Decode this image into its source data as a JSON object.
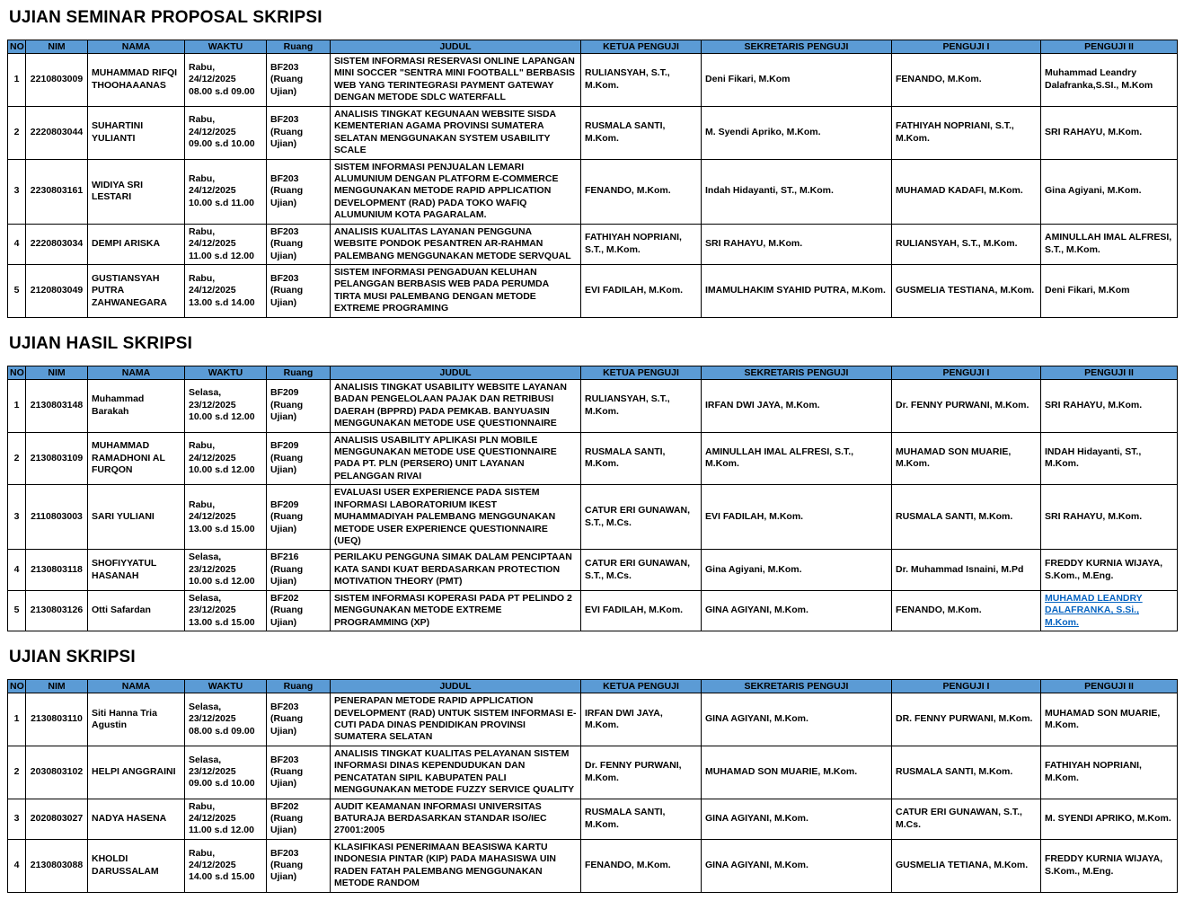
{
  "colors": {
    "header_bg": "#5B9BD5",
    "border": "#000000",
    "link": "#0563C1"
  },
  "columns": [
    "NO",
    "NIM",
    "NAMA",
    "WAKTU",
    "Ruang",
    "JUDUL",
    "KETUA PENGUJI",
    "SEKRETARIS PENGUJI",
    "PENGUJI I",
    "PENGUJI II"
  ],
  "sections": [
    {
      "title": "UJIAN SEMINAR PROPOSAL SKRIPSI",
      "rows": [
        {
          "no": "1",
          "nim": "2210803009",
          "nama": "MUHAMMAD RIFQI THOOHAAANAS",
          "waktu": "Rabu, 24/12/2025\n08.00 s.d 09.00",
          "ruang": "BF203\n(Ruang Ujian)",
          "judul": "SISTEM INFORMASI RESERVASI ONLINE LAPANGAN MINI SOCCER \"SENTRA MINI FOOTBALL\" BERBASIS WEB YANG TERINTEGRASI PAYMENT GATEWAY DENGAN METODE SDLC WATERFALL",
          "ketua": "RULIANSYAH, S.T., M.Kom.",
          "sekretaris": "Deni Fikari, M.Kom",
          "penguji1": "FENANDO, M.Kom.",
          "penguji2": "Muhammad Leandry Dalafranka,S.SI., M.Kom"
        },
        {
          "no": "2",
          "nim": "2220803044",
          "nama": "SUHARTINI YULIANTI",
          "waktu": "Rabu, 24/12/2025\n09.00 s.d 10.00",
          "ruang": "BF203\n(Ruang Ujian)",
          "judul": "ANALISIS TINGKAT KEGUNAAN WEBSITE SISDA KEMENTERIAN AGAMA PROVINSI SUMATERA SELATAN MENGGUNAKAN SYSTEM USABILITY SCALE",
          "ketua": "RUSMALA SANTI, M.Kom.",
          "sekretaris": "M. Syendi Apriko, M.Kom.",
          "penguji1": "FATHIYAH NOPRIANI, S.T., M.Kom.",
          "penguji2": "SRI RAHAYU, M.Kom."
        },
        {
          "no": "3",
          "nim": "2230803161",
          "nama": "WIDIYA SRI LESTARI",
          "waktu": "Rabu, 24/12/2025\n10.00 s.d 11.00",
          "ruang": "BF203\n(Ruang Ujian)",
          "judul": "SISTEM INFORMASI PENJUALAN LEMARI ALUMUNIUM DENGAN PLATFORM E-COMMERCE MENGGUNAKAN METODE RAPID APPLICATION DEVELOPMENT (RAD) PADA TOKO WAFIQ ALUMUNIUM KOTA PAGARALAM.",
          "ketua": "FENANDO, M.Kom.",
          "sekretaris": "Indah Hidayanti, ST., M.Kom.",
          "penguji1": "MUHAMAD KADAFI, M.Kom.",
          "penguji2": "Gina Agiyani, M.Kom."
        },
        {
          "no": "4",
          "nim": "2220803034",
          "nama": "DEMPI ARISKA",
          "waktu": "Rabu, 24/12/2025\n11.00 s.d 12.00",
          "ruang": "BF203\n(Ruang Ujian)",
          "judul": "ANALISIS KUALITAS LAYANAN PENGGUNA WEBSITE PONDOK PESANTREN AR-RAHMAN PALEMBANG MENGGUNAKAN METODE SERVQUAL",
          "ketua": "FATHIYAH NOPRIANI, S.T., M.Kom.",
          "sekretaris": "SRI RAHAYU, M.Kom.",
          "penguji1": "RULIANSYAH, S.T., M.Kom.",
          "penguji2": "AMINULLAH IMAL ALFRESI, S.T., M.Kom."
        },
        {
          "no": "5",
          "nim": "2120803049",
          "nama": "GUSTIANSYAH PUTRA ZAHWANEGARA",
          "waktu": "Rabu, 24/12/2025\n13.00 s.d 14.00",
          "ruang": "BF203\n(Ruang Ujian)",
          "judul": "SISTEM INFORMASI PENGADUAN KELUHAN PELANGGAN BERBASIS WEB PADA PERUMDA TIRTA MUSI PALEMBANG DENGAN METODE EXTREME PROGRAMING",
          "ketua": "EVI FADILAH, M.Kom.",
          "sekretaris": "IMAMULHAKIM SYAHID PUTRA, M.Kom.",
          "penguji1": "GUSMELIA TESTIANA, M.Kom.",
          "penguji2": "Deni Fikari, M.Kom"
        }
      ]
    },
    {
      "title": "UJIAN HASIL SKRIPSI",
      "rows": [
        {
          "no": "1",
          "nim": "2130803148",
          "nama": "Muhammad Barakah",
          "plain": true,
          "waktu": "Selasa, 23/12/2025\n10.00 s.d 12.00",
          "ruang": "BF209\n(Ruang Ujian)",
          "judul": "ANALISIS TINGKAT USABILITY WEBSITE LAYANAN BADAN PENGELOLAAN PAJAK DAN RETRIBUSI DAERAH (BPPRD) PADA PEMKAB. BANYUASIN MENGGUNAKAN METODE USE QUESTIONNAIRE",
          "ketua": "RULIANSYAH, S.T., M.Kom.",
          "sekretaris": "IRFAN DWI JAYA, M.Kom.",
          "penguji1": "Dr. FENNY PURWANI, M.Kom.",
          "penguji2": "SRI RAHAYU, M.Kom."
        },
        {
          "no": "2",
          "nim": "2130803109",
          "nama": "MUHAMMAD RAMADHONI AL FURQON",
          "waktu": "Rabu, 24/12/2025\n10.00 s.d 12.00",
          "ruang": "BF209\n(Ruang Ujian)",
          "judul": "ANALISIS USABILITY APLIKASI PLN MOBILE MENGGUNAKAN METODE USE QUESTIONNAIRE PADA PT. PLN (PERSERO) UNIT LAYANAN PELANGGAN RIVAI",
          "ketua": "RUSMALA SANTI, M.Kom.",
          "sekretaris": "AMINULLAH IMAL ALFRESI, S.T., M.Kom.",
          "penguji1": "MUHAMAD SON MUARIE, M.Kom.",
          "penguji2": "INDAH Hidayanti, ST., M.Kom."
        },
        {
          "no": "3",
          "nim": "2110803003",
          "nama": "SARI YULIANI",
          "waktu": "Rabu, 24/12/2025\n13.00 s.d 15.00",
          "ruang": "BF209\n(Ruang Ujian)",
          "judul": "EVALUASI USER EXPERIENCE PADA SISTEM INFORMASI LABORATORIUM IKEST MUHAMMADIYAH PALEMBANG MENGGUNAKAN METODE USER EXPERIENCE QUESTIONNAIRE (UEQ)",
          "ketua": "CATUR ERI GUNAWAN, S.T., M.Cs.",
          "sekretaris": "EVI FADILAH, M.Kom.",
          "penguji1": "RUSMALA SANTI, M.Kom.",
          "penguji2": "SRI RAHAYU, M.Kom."
        },
        {
          "no": "4",
          "nim": "2130803118",
          "nama": "SHOFIYYATUL HASANAH",
          "waktu": "Selasa, 23/12/2025\n10.00 s.d 12.00",
          "ruang": "BF216\n(Ruang Ujian)",
          "judul": "PERILAKU PENGGUNA SIMAK DALAM PENCIPTAAN KATA SANDI KUAT BERDASARKAN PROTECTION MOTIVATION THEORY (PMT)",
          "ketua": "CATUR ERI GUNAWAN, S.T., M.Cs.",
          "sekretaris": "Gina Agiyani, M.Kom.",
          "penguji1": "Dr. Muhammad Isnaini, M.Pd",
          "penguji2": "FREDDY KURNIA WIJAYA, S.Kom., M.Eng."
        },
        {
          "no": "5",
          "nim": "2130803126",
          "nama": "Otti Safardan",
          "plain": true,
          "waktu": "Selasa, 23/12/2025\n13.00 s.d 15.00",
          "ruang": "BF202\n(Ruang Ujian)",
          "judul": "SISTEM INFORMASI KOPERASI PADA PT PELINDO 2 MENGGUNAKAN METODE EXTREME PROGRAMMING (XP)",
          "ketua": "EVI FADILAH, M.Kom.",
          "sekretaris": "GINA AGIYANI, M.Kom.",
          "penguji1": "FENANDO, M.Kom.",
          "penguji2": "MUHAMAD LEANDRY DALAFRANKA, S.Si., M.Kom.",
          "penguji2_link": true
        }
      ]
    },
    {
      "title": "UJIAN SKRIPSI",
      "rows": [
        {
          "no": "1",
          "nim": "2130803110",
          "nama": "Siti Hanna Tria Agustin",
          "plain": true,
          "waktu": "Selasa, 23/12/2025\n08.00 s.d 09.00",
          "ruang": "BF203\n(Ruang Ujian)",
          "judul": "PENERAPAN METODE RAPID APPLICATION DEVELOPMENT (RAD) UNTUK SISTEM INFORMASI E-CUTI PADA DINAS PENDIDIKAN PROVINSI SUMATERA SELATAN",
          "ketua": "IRFAN DWI JAYA, M.Kom.",
          "sekretaris": "GINA AGIYANI, M.Kom.",
          "penguji1": "DR. FENNY PURWANI, M.Kom.",
          "penguji2": "MUHAMAD SON MUARIE, M.Kom."
        },
        {
          "no": "2",
          "nim": "2030803102",
          "nama": "HELPI ANGGRAINI",
          "waktu": "Selasa, 23/12/2025\n09.00 s.d 10.00",
          "ruang": "BF203\n(Ruang Ujian)",
          "judul": "ANALISIS TINGKAT KUALITAS PELAYANAN SISTEM INFORMASI DINAS KEPENDUDUKAN DAN PENCATATAN SIPIL KABUPATEN PALI MENGGUNAKAN METODE FUZZY SERVICE QUALITY",
          "ketua": "Dr. FENNY PURWANI, M.Kom.",
          "sekretaris": "MUHAMAD SON MUARIE, M.Kom.",
          "penguji1": "RUSMALA SANTI, M.Kom.",
          "penguji2": "FATHIYAH NOPRIANI, M.Kom."
        },
        {
          "no": "3",
          "nim": "2020803027",
          "nama": "NADYA HASENA",
          "waktu": "Rabu, 24/12/2025\n11.00 s.d 12.00",
          "ruang": "BF202\n(Ruang Ujian)",
          "judul": "AUDIT KEAMANAN INFORMASI UNIVERSITAS BATURAJA BERDASARKAN STANDAR ISO/IEC 27001:2005",
          "ketua": "RUSMALA SANTI, M.Kom.",
          "sekretaris": "GINA AGIYANI, M.Kom.",
          "penguji1": "CATUR ERI GUNAWAN, S.T., M.Cs.",
          "penguji2": "M. SYENDI APRIKO, M.Kom."
        },
        {
          "no": "4",
          "nim": "2130803088",
          "nama": "KHOLDI DARUSSALAM",
          "waktu": "Rabu, 24/12/2025\n14.00 s.d 15.00",
          "ruang": "BF203\n(Ruang Ujian)",
          "judul": "KLASIFIKASI PENERIMAAN BEASISWA KARTU INDONESIA PINTAR (KIP) PADA MAHASISWA UIN RADEN FATAH PALEMBANG MENGGUNAKAN METODE RANDOM",
          "ketua": "FENANDO, M.Kom.",
          "sekretaris": "GINA AGIYANI, M.Kom.",
          "penguji1": "GUSMELIA TETIANA, M.Kom.",
          "penguji2": "FREDDY KURNIA WIJAYA, S.Kom., M.Eng."
        }
      ]
    }
  ]
}
